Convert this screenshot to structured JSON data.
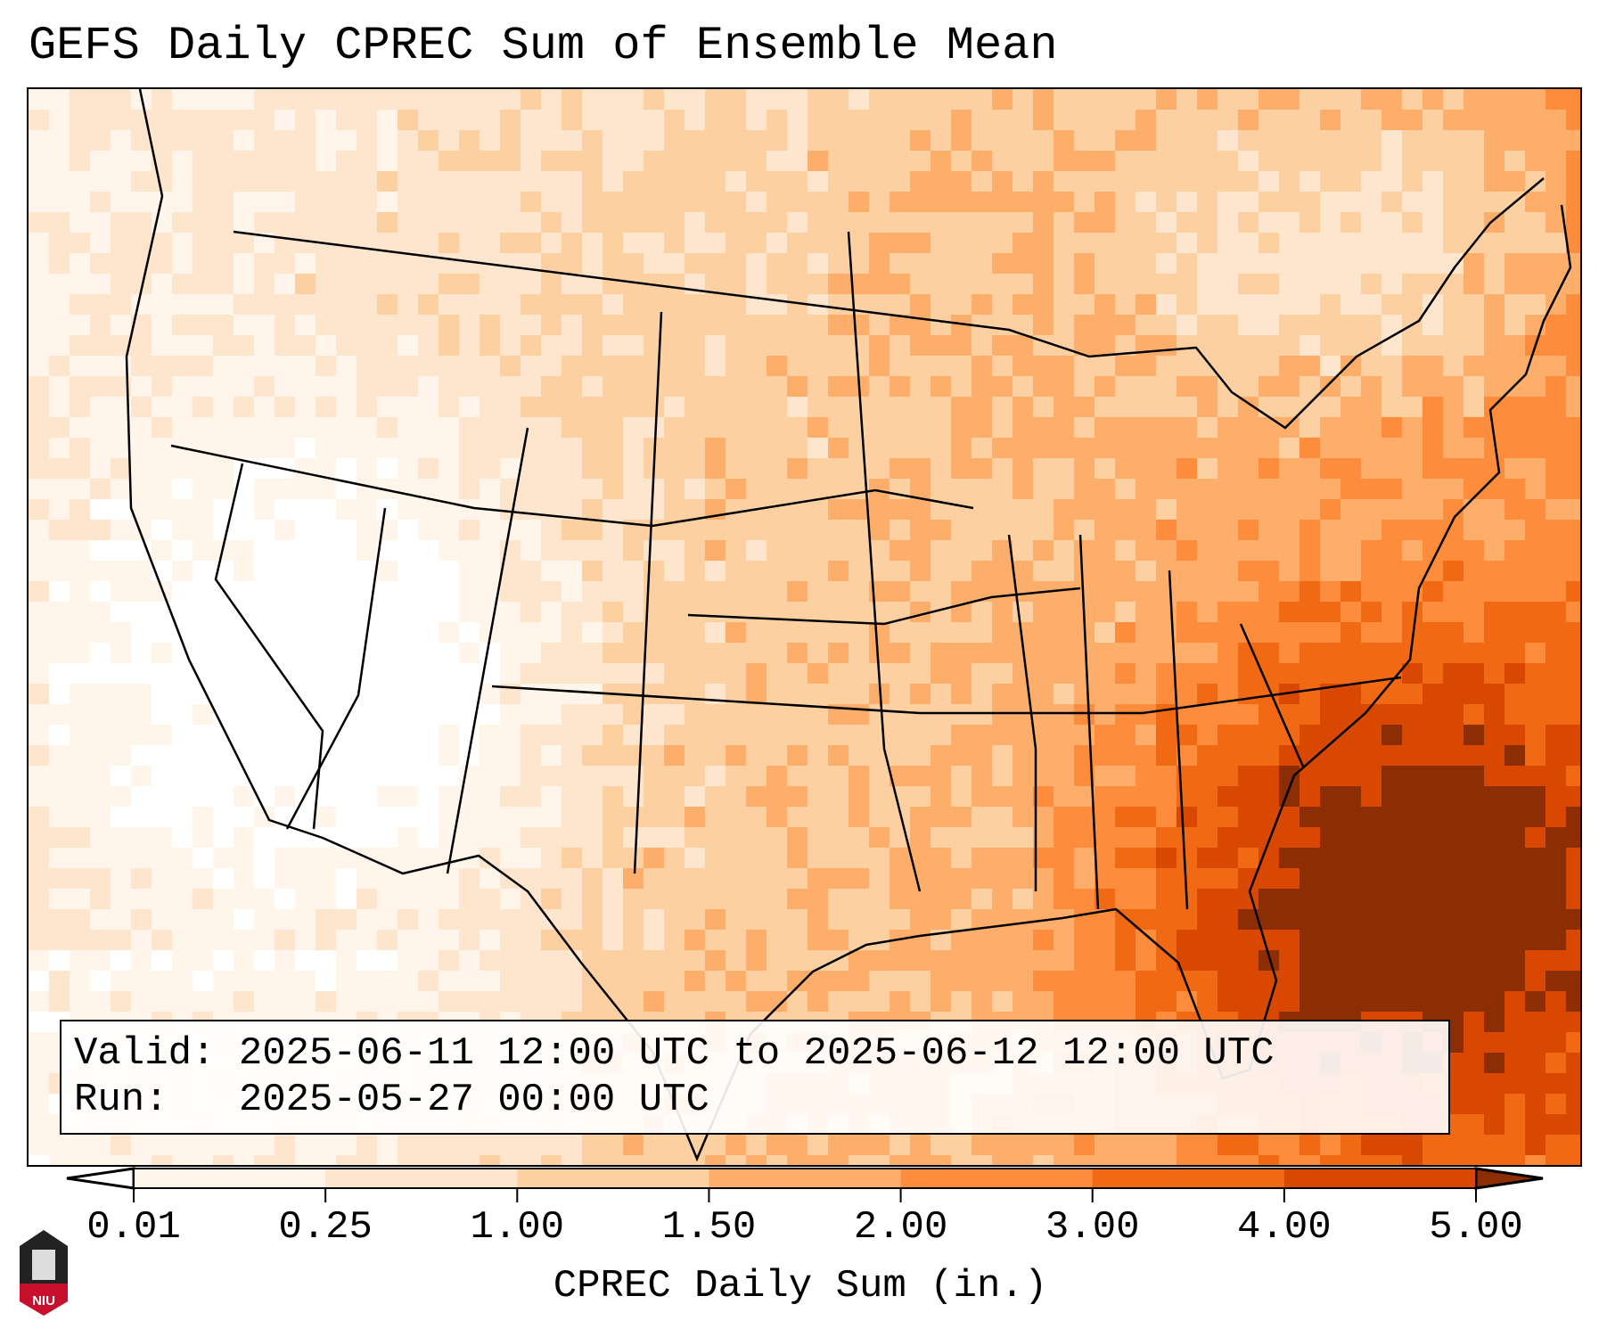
{
  "title": "GEFS Daily CPREC Sum of Ensemble Mean",
  "info": {
    "valid": "Valid: 2025-06-11 12:00 UTC to 2025-06-12 12:00 UTC",
    "run": "Run:   2025-05-27 00:00 UTC"
  },
  "chart_data": {
    "type": "heatmap",
    "title": "GEFS Daily CPREC Sum of Ensemble Mean",
    "colorbar": {
      "label": "CPREC Daily Sum (in.)",
      "ticks": [
        "0.01",
        "0.25",
        "1.00",
        "1.50",
        "2.00",
        "3.00",
        "4.00",
        "5.00"
      ],
      "bins": [
        {
          "from": 0.01,
          "to": 0.25,
          "color": "#fff5eb"
        },
        {
          "from": 0.25,
          "to": 1.0,
          "color": "#fee6ce"
        },
        {
          "from": 1.0,
          "to": 1.5,
          "color": "#fdd0a2"
        },
        {
          "from": 1.5,
          "to": 2.0,
          "color": "#fdae6b"
        },
        {
          "from": 2.0,
          "to": 3.0,
          "color": "#fd8d3c"
        },
        {
          "from": 3.0,
          "to": 4.0,
          "color": "#f16913"
        },
        {
          "from": 4.0,
          "to": 5.0,
          "color": "#d94801"
        }
      ],
      "under_color": "#ffffff",
      "over_color": "#8c2d04",
      "extend": "both"
    },
    "region": "Contiguous United States",
    "pattern": "Driest (under 0.01 in.) over the Southwest and California; heaviest (over 5 in.) over the Southeast coast, Florida and the western Atlantic"
  },
  "logo": {
    "text": "NIU"
  }
}
